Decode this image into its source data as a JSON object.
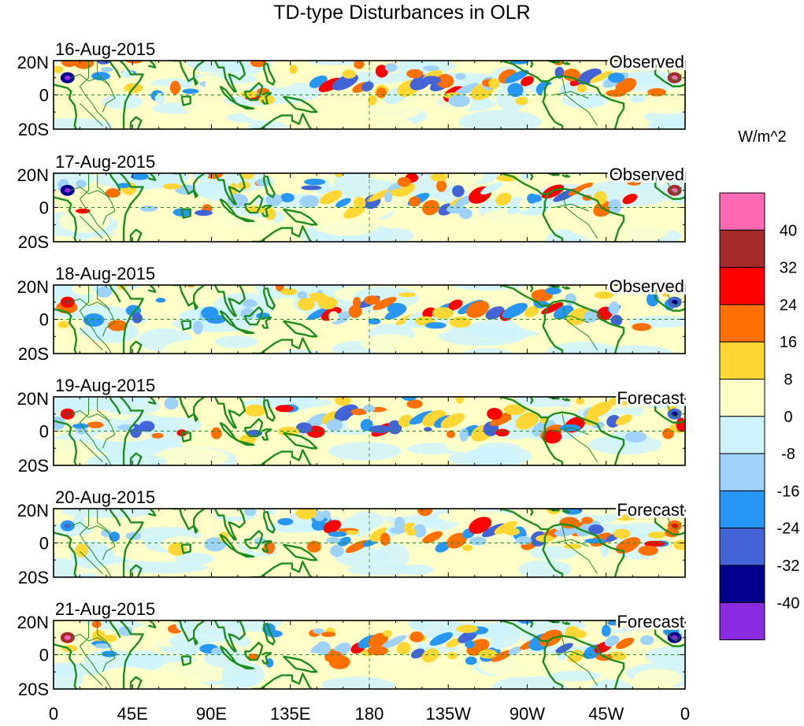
{
  "title": "TD-type Disturbances in OLR",
  "colorbar": {
    "unit_label": "W/m^2",
    "tick_labels": [
      "40",
      "32",
      "24",
      "16",
      "8",
      "0",
      "-8",
      "-16",
      "-24",
      "-32",
      "-40"
    ],
    "colors": [
      "#ff69b4",
      "#a52a2a",
      "#ff0000",
      "#ff7000",
      "#ffd633",
      "#ffffc8",
      "#cff3fb",
      "#9fd2fb",
      "#2896f5",
      "#4264d6",
      "#00008c",
      "#8a2be2"
    ]
  },
  "lat_labels": [
    "20N",
    "0",
    "20S"
  ],
  "lon_labels": [
    "0",
    "45E",
    "90E",
    "135E",
    "180",
    "135W",
    "90W",
    "45W",
    "0"
  ],
  "panels": [
    {
      "date": "16-Aug-2015",
      "status": "Observed"
    },
    {
      "date": "17-Aug-2015",
      "status": "Observed"
    },
    {
      "date": "18-Aug-2015",
      "status": "Observed"
    },
    {
      "date": "19-Aug-2015",
      "status": "Forecast"
    },
    {
      "date": "20-Aug-2015",
      "status": "Forecast"
    },
    {
      "date": "21-Aug-2015",
      "status": "Forecast"
    }
  ],
  "map": {
    "lon_range": [
      0,
      360
    ],
    "lat_range": [
      -20,
      20
    ],
    "coastline_color": "#1e8c1e",
    "equator_line": "dashed"
  }
}
